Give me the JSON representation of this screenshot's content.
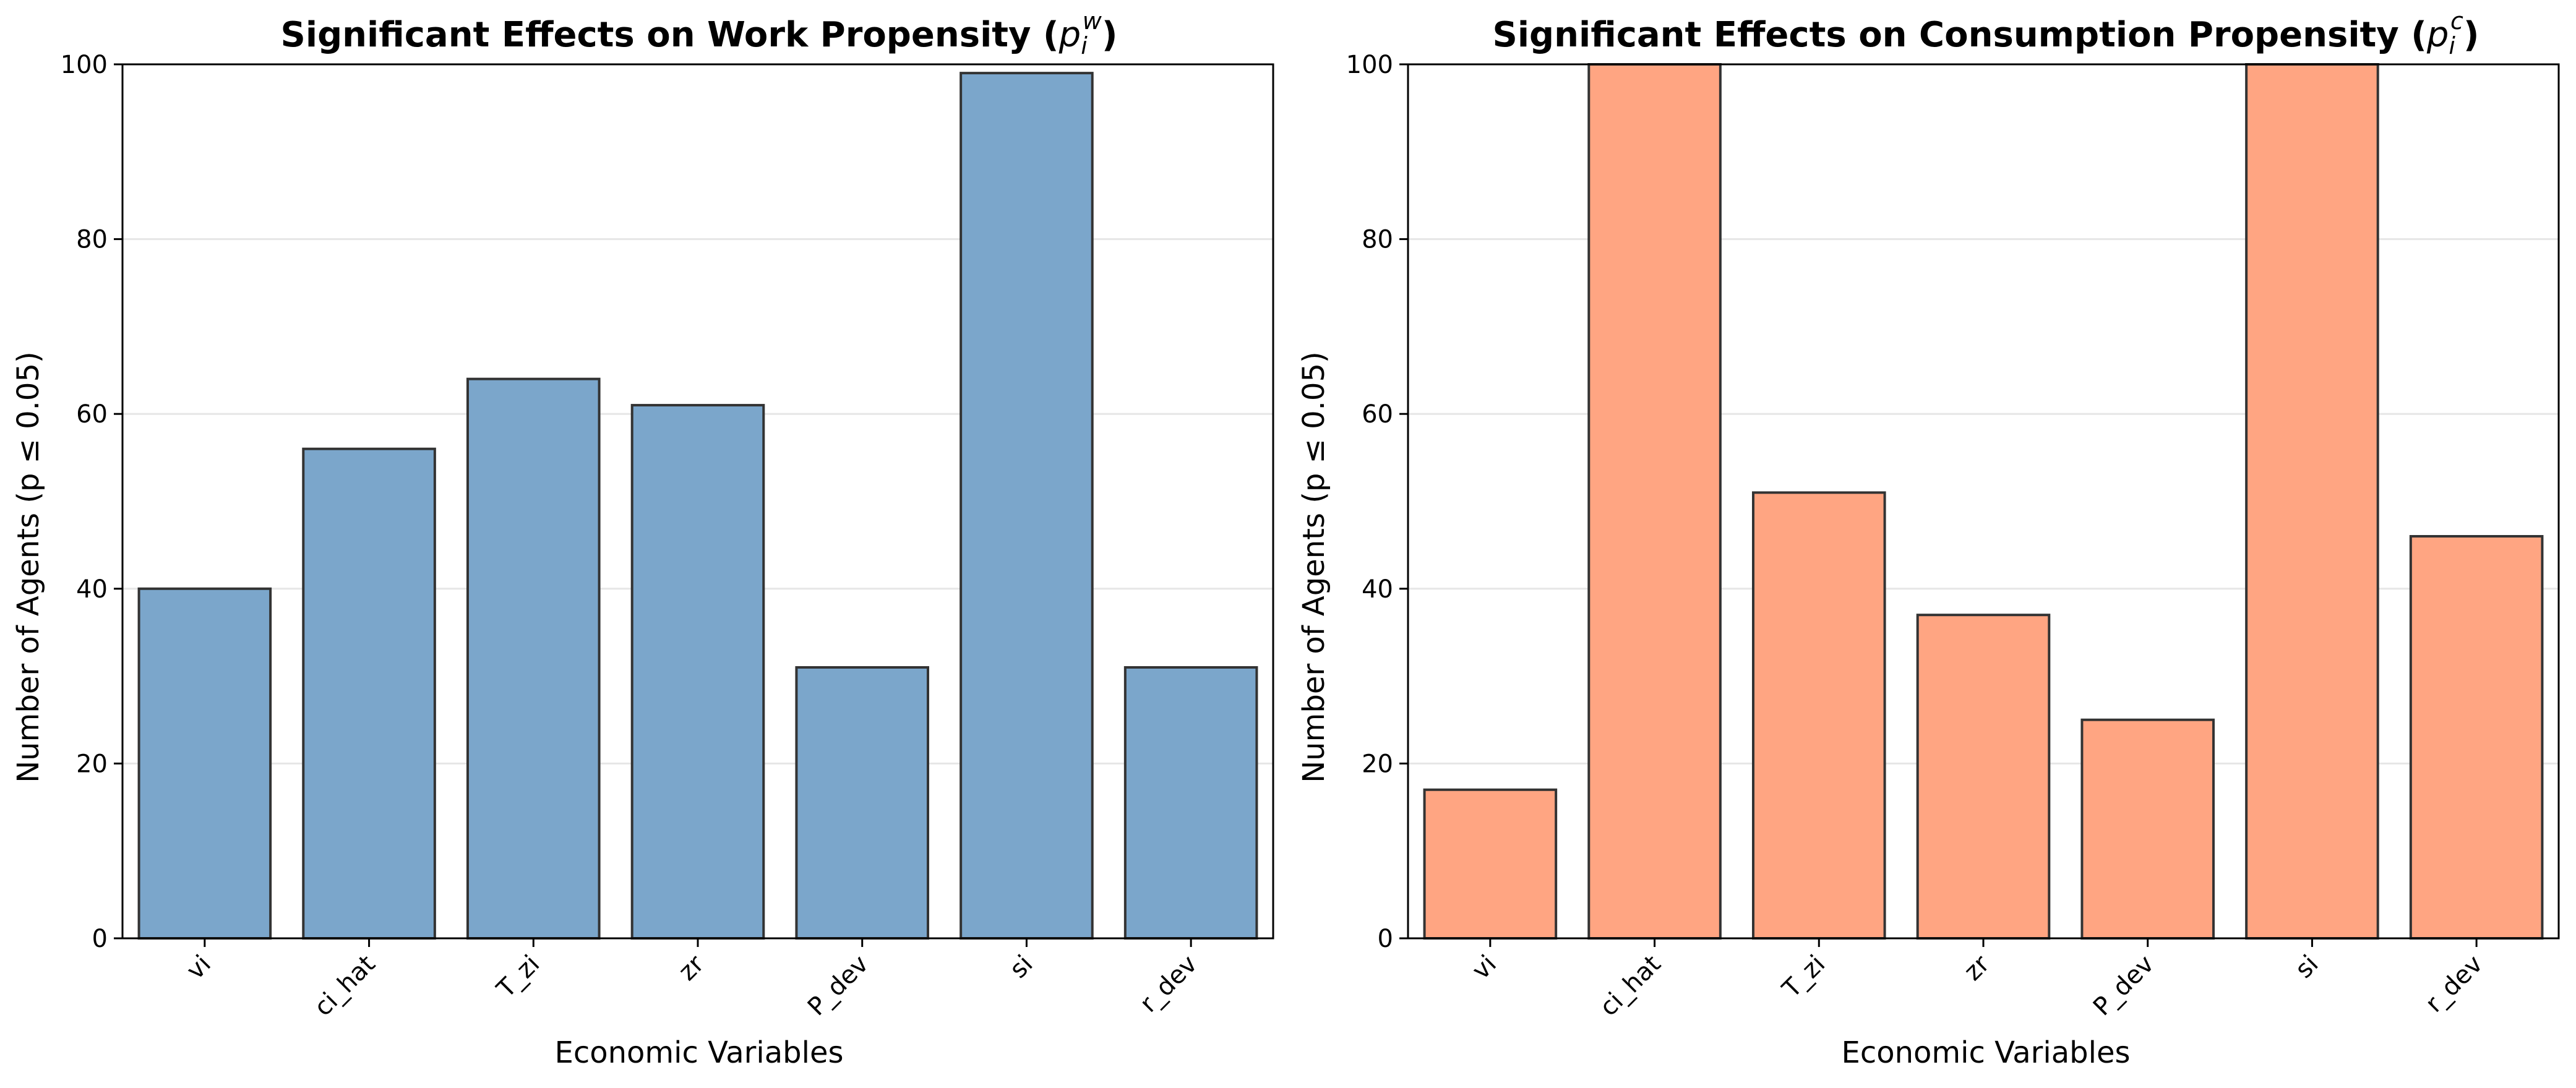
{
  "chart_data": [
    {
      "type": "bar",
      "title_main": "Significant Effects on Work Propensity (",
      "title_symbol": "p",
      "title_sub": "i",
      "title_sup": "w",
      "title_end": ")",
      "xlabel": "Economic Variables",
      "ylabel": "Number of Agents (p ≤ 0.05)",
      "categories": [
        "vi",
        "ci_hat",
        "T_zi",
        "zr",
        "P_dev",
        "si",
        "r_dev"
      ],
      "values": [
        40,
        56,
        64,
        61,
        31,
        99,
        31
      ],
      "ylim": [
        0,
        100
      ],
      "yticks": [
        "0",
        "20",
        "40",
        "60",
        "80",
        "100"
      ],
      "grid": "horizontal",
      "bar_color": "#7ba6cb",
      "edge_color": "#333333"
    },
    {
      "type": "bar",
      "title_main": "Significant Effects on Consumption Propensity (",
      "title_symbol": "p",
      "title_sub": "i",
      "title_sup": "c",
      "title_end": ")",
      "xlabel": "Economic Variables",
      "ylabel": "Number of Agents (p ≤ 0.05)",
      "categories": [
        "vi",
        "ci_hat",
        "T_zi",
        "zr",
        "P_dev",
        "si",
        "r_dev"
      ],
      "values": [
        17,
        100,
        51,
        37,
        25,
        100,
        46
      ],
      "ylim": [
        0,
        100
      ],
      "yticks": [
        "0",
        "20",
        "40",
        "60",
        "80",
        "100"
      ],
      "grid": "horizontal",
      "bar_color": "#ffa582",
      "edge_color": "#333333"
    }
  ]
}
